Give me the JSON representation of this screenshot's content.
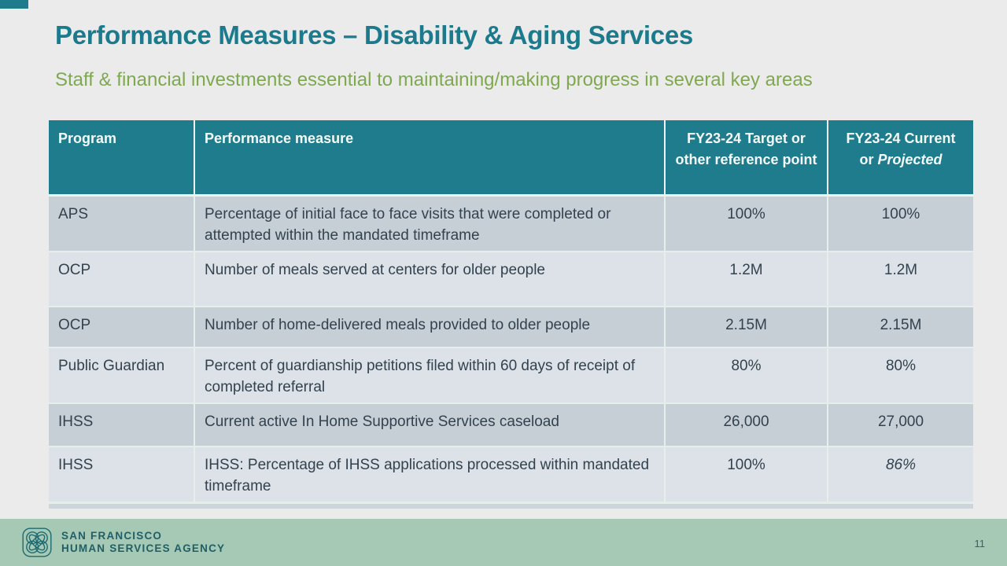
{
  "slide": {
    "title": "Performance Measures – Disability & Aging Services",
    "subtitle": "Staff & financial investments essential to maintaining/making progress in several key areas",
    "page_number": "11"
  },
  "table": {
    "header": {
      "program": "Program",
      "measure": "Performance measure",
      "target": "FY23-24 Target or other reference point",
      "current_prefix": "FY23-24 Current or",
      "current_italic": "Projected"
    },
    "rows": [
      {
        "program": "APS",
        "measure": "Percentage of initial face to face visits that were completed or attempted within the mandated timeframe",
        "target": "100%",
        "current": "100%",
        "current_italic": false
      },
      {
        "program": "OCP",
        "measure": "Number of meals served at centers for older people",
        "target": "1.2M",
        "current": "1.2M",
        "current_italic": false
      },
      {
        "program": "OCP",
        "measure": "Number of home-delivered meals provided to older people",
        "target": "2.15M",
        "current": "2.15M",
        "current_italic": false
      },
      {
        "program": "Public Guardian",
        "measure": "Percent of guardianship petitions filed within 60 days of receipt of completed referral",
        "target": "80%",
        "current": "80%",
        "current_italic": false
      },
      {
        "program": "IHSS",
        "measure": "Current active In Home Supportive Services caseload",
        "target": "26,000",
        "current": "27,000",
        "current_italic": false
      },
      {
        "program": "IHSS",
        "measure": "IHSS: Percentage of IHSS applications processed within mandated timeframe",
        "target": "100%",
        "current": "86%",
        "current_italic": true
      }
    ]
  },
  "footer": {
    "org_line1": "SAN FRANCISCO",
    "org_line2": "HUMAN SERVICES AGENCY",
    "logo_icon": "hsa-flower-logo"
  },
  "colors": {
    "header_teal": "#1F7C8C",
    "title_teal": "#1B7A8C",
    "subtitle_green": "#7FA851",
    "row_dark": "#C6CFD6",
    "row_light": "#DCE2E7",
    "footer_green": "#A6C9B5",
    "footer_text_teal": "#215F66",
    "body_text": "#33424E",
    "slide_bg": "#EBEBEB"
  }
}
